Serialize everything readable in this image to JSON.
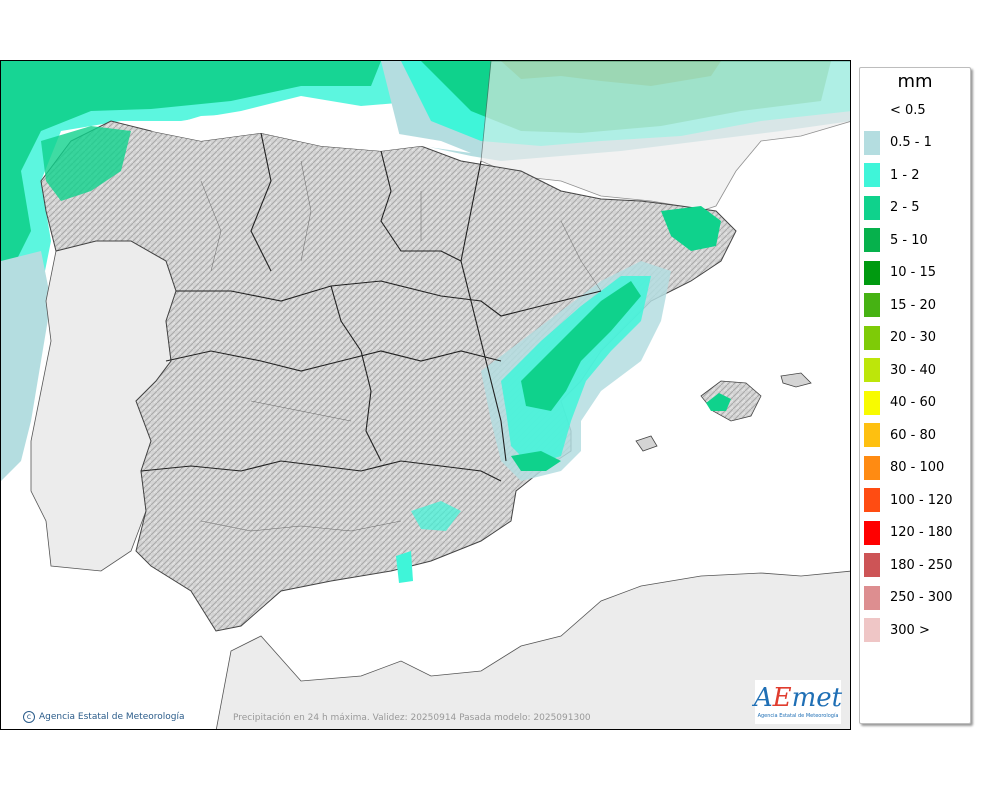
{
  "map": {
    "unit_title": "mm",
    "credit": "Agencia Estatal de Meteorología",
    "caption": "Precipitación en 24 h máxima. Validez: 20250914 Pasada modelo: 2025091300",
    "logo_text": "AEmet",
    "logo_subtitle": "Agencia Estatal de Meteorología"
  },
  "legend": {
    "title": "mm",
    "items": [
      {
        "label": "< 0.5",
        "color": "#ffffff"
      },
      {
        "label": "0.5 - 1",
        "color": "#b4dde0"
      },
      {
        "label": "1 - 2",
        "color": "#3ff5d9"
      },
      {
        "label": "2 - 5",
        "color": "#0fd28c"
      },
      {
        "label": "5 - 10",
        "color": "#06b14c"
      },
      {
        "label": "10 - 15",
        "color": "#009a10"
      },
      {
        "label": "15 - 20",
        "color": "#46b213"
      },
      {
        "label": "20 - 30",
        "color": "#7ecb07"
      },
      {
        "label": "30 - 40",
        "color": "#bde60a"
      },
      {
        "label": "40 - 60",
        "color": "#f8fb00"
      },
      {
        "label": "60 - 80",
        "color": "#fec010"
      },
      {
        "label": "80 - 100",
        "color": "#ff8b12"
      },
      {
        "label": "100 - 120",
        "color": "#ff4c12"
      },
      {
        "label": "120 - 180",
        "color": "#ff0000"
      },
      {
        "label": "180 - 250",
        "color": "#cd5456"
      },
      {
        "label": "250 - 300",
        "color": "#dd8e90"
      },
      {
        "label": "300 >",
        "color": "#efc6c6"
      }
    ]
  }
}
